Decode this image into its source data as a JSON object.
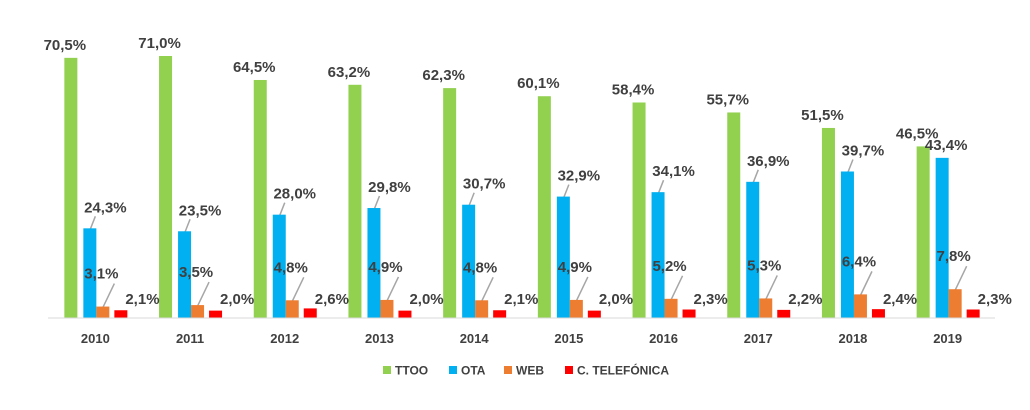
{
  "chart_data": {
    "type": "bar",
    "categories": [
      "2010",
      "2011",
      "2012",
      "2013",
      "2014",
      "2015",
      "2016",
      "2017",
      "2018",
      "2019"
    ],
    "series": [
      {
        "name": "TTOO",
        "color": "#92D050",
        "values": [
          70.5,
          71.0,
          64.5,
          63.2,
          62.3,
          60.1,
          58.4,
          55.7,
          51.5,
          46.5
        ],
        "labels": [
          "70,5%",
          "71,0%",
          "64,5%",
          "63,2%",
          "62,3%",
          "60,1%",
          "58,4%",
          "55,7%",
          "51,5%",
          "46,5%"
        ]
      },
      {
        "name": "OTA",
        "color": "#00B0F0",
        "values": [
          24.3,
          23.5,
          28.0,
          29.8,
          30.7,
          32.9,
          34.1,
          36.9,
          39.7,
          43.4
        ],
        "labels": [
          "24,3%",
          "23,5%",
          "28,0%",
          "29,8%",
          "30,7%",
          "32,9%",
          "34,1%",
          "36,9%",
          "39,7%",
          "43,4%"
        ]
      },
      {
        "name": "WEB",
        "color": "#ED7D31",
        "values": [
          3.1,
          3.5,
          4.8,
          4.9,
          4.8,
          4.9,
          5.2,
          5.3,
          6.4,
          7.8
        ],
        "labels": [
          "3,1%",
          "3,5%",
          "4,8%",
          "4,9%",
          "4,8%",
          "4,9%",
          "5,2%",
          "5,3%",
          "6,4%",
          "7,8%"
        ]
      },
      {
        "name": "C. TELEFÓNICA",
        "color": "#FF0000",
        "values": [
          2.1,
          2.0,
          2.6,
          2.0,
          2.1,
          2.0,
          2.3,
          2.2,
          2.4,
          2.3
        ],
        "labels": [
          "2,1%",
          "2,0%",
          "2,6%",
          "2,0%",
          "2,1%",
          "2,0%",
          "2,3%",
          "2,2%",
          "2,4%",
          "2,3%"
        ]
      }
    ],
    "ylim": [
      0,
      75
    ],
    "grid": false,
    "legend": "bottom",
    "title": "",
    "xlabel": "",
    "ylabel": ""
  }
}
